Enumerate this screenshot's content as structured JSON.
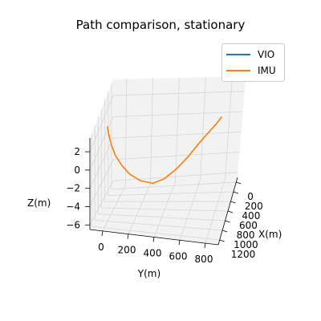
{
  "chart_data": {
    "type": "line",
    "title": "Path comparison, stationary",
    "xlabel": "X(m)",
    "ylabel": "Y(m)",
    "zlabel": "Z(m)",
    "x_ticks": [
      "0",
      "200",
      "400",
      "600",
      "800",
      "1000",
      "1200"
    ],
    "y_ticks": [
      "0",
      "200",
      "400",
      "600",
      "800"
    ],
    "z_ticks": [
      "2",
      "0",
      "−2",
      "−4",
      "−6"
    ],
    "xlim": [
      -100,
      1300
    ],
    "ylim": [
      -100,
      900
    ],
    "zlim": [
      -6.5,
      3.5
    ],
    "grid": true,
    "legend_position": "top-right",
    "series": [
      {
        "name": "VIO",
        "color": "#1f77b4",
        "x": [],
        "y": [],
        "z": []
      },
      {
        "name": "IMU",
        "color": "#ff7f0e",
        "x": [
          0,
          20,
          40,
          60,
          90,
          130,
          180,
          250,
          330,
          420,
          520,
          620,
          720,
          820,
          900
        ],
        "y": [
          0,
          10,
          30,
          60,
          110,
          170,
          250,
          340,
          420,
          500,
          580,
          640,
          700,
          760,
          800
        ],
        "z": [
          3.0,
          2.2,
          1.2,
          0.2,
          -0.8,
          -1.7,
          -2.4,
          -2.8,
          -2.6,
          -2.0,
          -1.2,
          -0.5,
          0.1,
          0.6,
          1.0
        ]
      }
    ]
  }
}
